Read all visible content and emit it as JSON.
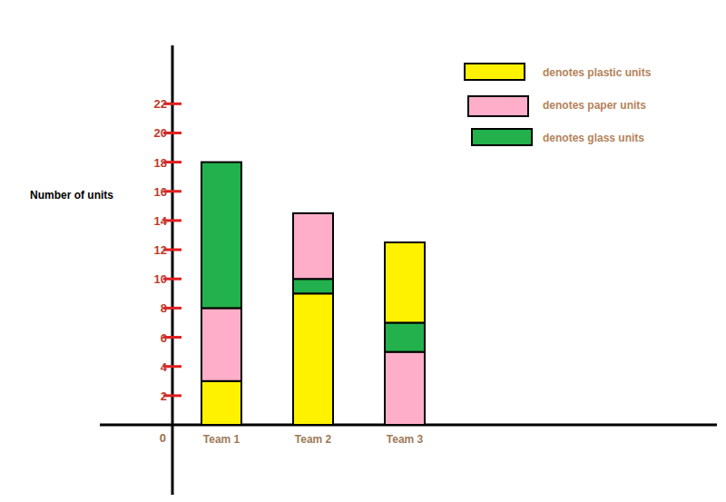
{
  "chart_data": {
    "type": "bar",
    "stacked": true,
    "legend": "top-right",
    "y_label": "Number of units",
    "categories": [
      "Team 1",
      "Team 2",
      "Team 3"
    ],
    "series": [
      {
        "name": "denotes plastic units",
        "color": "#fff200",
        "values": [
          3,
          9,
          5.5
        ]
      },
      {
        "name": "denotes paper units",
        "color": "#ffaec9",
        "values": [
          5,
          4.5,
          5
        ]
      },
      {
        "name": "denotes glass units",
        "color": "#22b14c",
        "values": [
          10,
          1,
          2
        ]
      }
    ],
    "ylim": [
      0,
      26
    ],
    "yticks": [
      0,
      2,
      4,
      6,
      8,
      10,
      12,
      14,
      16,
      18,
      20,
      22
    ]
  }
}
